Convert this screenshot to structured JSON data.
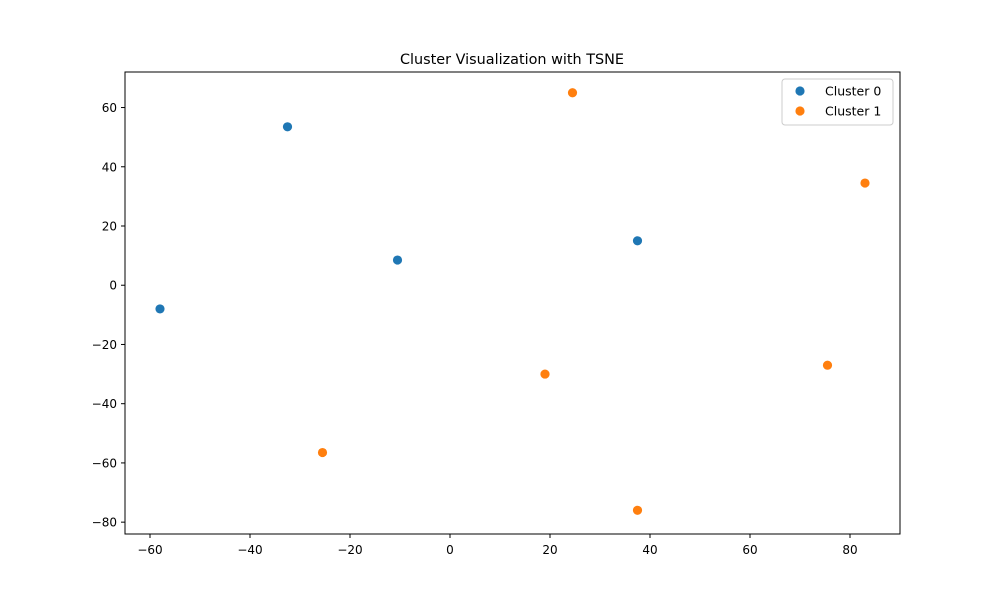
{
  "chart_data": {
    "type": "scatter",
    "title": "Cluster Visualization with TSNE",
    "xlabel": "",
    "ylabel": "",
    "xlim": [
      -65,
      90
    ],
    "ylim": [
      -84,
      72
    ],
    "xticks": [
      -60,
      -40,
      -20,
      0,
      20,
      40,
      60,
      80
    ],
    "yticks": [
      -80,
      -60,
      -40,
      -20,
      0,
      20,
      40,
      60
    ],
    "grid": false,
    "legend_position": "top-right",
    "series": [
      {
        "name": "Cluster 0",
        "color": "#1f77b4",
        "points": [
          {
            "x": -58.0,
            "y": -8.0
          },
          {
            "x": -32.5,
            "y": 53.5
          },
          {
            "x": -10.5,
            "y": 8.5
          },
          {
            "x": 37.5,
            "y": 15.0
          }
        ]
      },
      {
        "name": "Cluster 1",
        "color": "#ff7f0e",
        "points": [
          {
            "x": 24.5,
            "y": 65.0
          },
          {
            "x": 83.0,
            "y": 34.5
          },
          {
            "x": 19.0,
            "y": -30.0
          },
          {
            "x": 75.5,
            "y": -27.0
          },
          {
            "x": -25.5,
            "y": -56.5
          },
          {
            "x": 37.5,
            "y": -76.0
          }
        ]
      }
    ]
  }
}
